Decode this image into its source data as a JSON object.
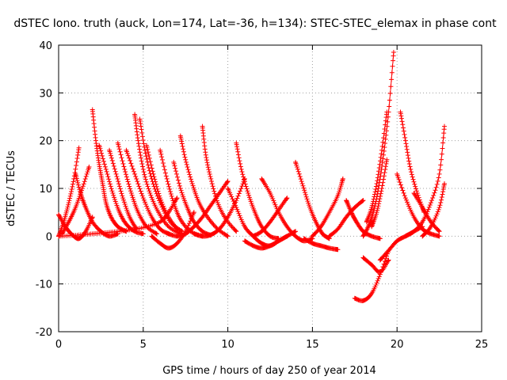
{
  "chart_data": {
    "type": "scatter",
    "title": "dSTEC Iono. truth (auck, Lon=174, Lat=-36, h=134): STEC-STEC_elemax in phase cont",
    "xlabel": "GPS time / hours of day 250 of year 2014",
    "ylabel": "dSTEC  / TECUs",
    "xlim": [
      0,
      25
    ],
    "ylim": [
      -20,
      40
    ],
    "xticks": [
      0,
      5,
      10,
      15,
      20,
      25
    ],
    "yticks": [
      -20,
      -10,
      0,
      10,
      20,
      30,
      40
    ],
    "x_tick_labels": [
      "0",
      "5",
      "10",
      "15",
      "20",
      "25"
    ],
    "y_tick_labels": [
      "-20",
      "-10",
      "0",
      "10",
      "20",
      "30",
      "40"
    ],
    "grid": true,
    "marker": "plus",
    "color": "#ff0000",
    "series": [
      {
        "x": [
          0.0,
          0.3,
          0.6,
          0.9,
          1.2
        ],
        "y": [
          0,
          3,
          7,
          12,
          18.5
        ]
      },
      {
        "x": [
          0.0,
          0.4,
          0.8,
          1.2,
          1.6,
          2.0
        ],
        "y": [
          4.5,
          2,
          0.3,
          -0.5,
          1,
          4
        ]
      },
      {
        "x": [
          0.2,
          0.6,
          1.0,
          1.4,
          1.8
        ],
        "y": [
          0.5,
          3,
          6,
          10,
          14.5
        ]
      },
      {
        "x": [
          1.0,
          1.3,
          1.6,
          2.0,
          2.5,
          3.0,
          3.5
        ],
        "y": [
          13,
          9,
          6,
          3,
          1,
          0,
          0.5
        ]
      },
      {
        "x": [
          2.0,
          2.2,
          2.4,
          2.6,
          2.8,
          3.1,
          3.5,
          4.0
        ],
        "y": [
          26.5,
          20,
          15,
          11,
          7,
          4,
          2,
          1
        ]
      },
      {
        "x": [
          2.4,
          2.8,
          3.2,
          3.6,
          4.0,
          4.5,
          5.0
        ],
        "y": [
          19,
          14,
          9,
          5,
          2.5,
          1,
          0.5
        ]
      },
      {
        "x": [
          3.0,
          3.4,
          3.8,
          4.2,
          4.6
        ],
        "y": [
          18,
          13,
          8,
          4,
          1.5
        ]
      },
      {
        "x": [
          3.5,
          3.9,
          4.3,
          4.7,
          5.2,
          5.8
        ],
        "y": [
          19.5,
          14,
          9,
          5,
          2,
          0.5
        ]
      },
      {
        "x": [
          4.0,
          4.5,
          5.0,
          5.5,
          6.0,
          6.5
        ],
        "y": [
          18,
          13,
          8,
          4,
          1.5,
          0.5
        ]
      },
      {
        "x": [
          4.5,
          4.7,
          5.0,
          5.4,
          5.9,
          6.5,
          7.2
        ],
        "y": [
          25.5,
          20,
          14,
          9,
          5,
          2,
          0.5
        ]
      },
      {
        "x": [
          4.8,
          5.1,
          5.5,
          6.0,
          6.6,
          7.3
        ],
        "y": [
          24.5,
          18,
          12,
          7,
          3,
          1
        ]
      },
      {
        "x": [
          5.2,
          5.6,
          6.0,
          6.5,
          7.0
        ],
        "y": [
          19,
          13,
          8,
          4,
          1.5
        ]
      },
      {
        "x": [
          6.0,
          6.4,
          6.8,
          7.2,
          7.8,
          8.5
        ],
        "y": [
          18,
          12,
          7,
          3.5,
          1,
          0
        ]
      },
      {
        "x": [
          6.8,
          7.2,
          7.6,
          8.0,
          8.5,
          9.0
        ],
        "y": [
          15.5,
          10,
          6,
          3,
          1,
          0.2
        ]
      },
      {
        "x": [
          7.2,
          7.5,
          7.9,
          8.3,
          8.8,
          9.4,
          10.0
        ],
        "y": [
          21,
          16,
          11,
          7,
          4,
          1.5,
          0
        ]
      },
      {
        "x": [
          8.5,
          8.7,
          9.0,
          9.4,
          9.9,
          10.5
        ],
        "y": [
          23,
          17,
          12,
          7,
          3.5,
          1
        ]
      },
      {
        "x": [
          0.0,
          1.0,
          2.0,
          3.0,
          4.0,
          5.0,
          6.0,
          6.5,
          7.0
        ],
        "y": [
          0,
          0.2,
          0.5,
          0.8,
          1.2,
          1.8,
          3,
          5,
          8
        ]
      },
      {
        "x": [
          5.5,
          6.0,
          6.5,
          7.0,
          7.5,
          8.0
        ],
        "y": [
          0,
          -1.5,
          -2.5,
          -1.5,
          1,
          5
        ]
      },
      {
        "x": [
          6.5,
          7.0,
          7.5,
          8.0,
          8.5,
          9.0,
          9.5,
          10.0
        ],
        "y": [
          0.5,
          0,
          0.5,
          2,
          4,
          6.5,
          9,
          11.5
        ]
      },
      {
        "x": [
          8.0,
          8.5,
          9.0,
          9.5,
          10.0,
          10.5,
          11.0
        ],
        "y": [
          0.5,
          0,
          0.3,
          1.5,
          4,
          7.5,
          12
        ]
      },
      {
        "x": [
          10.5,
          10.8,
          11.2,
          11.6,
          12.0,
          12.5,
          13.0
        ],
        "y": [
          19.5,
          14,
          9,
          5,
          2,
          0,
          -0.5
        ]
      },
      {
        "x": [
          10.0,
          10.5,
          11.0,
          11.5,
          12.0,
          12.5,
          13.0,
          13.5
        ],
        "y": [
          10,
          6,
          2,
          0,
          -1.5,
          -2,
          -1,
          0
        ]
      },
      {
        "x": [
          11.0,
          11.5,
          12.0,
          12.5,
          13.0,
          13.5,
          14.0
        ],
        "y": [
          -1,
          -2,
          -2.5,
          -2,
          -1,
          0,
          1
        ]
      },
      {
        "x": [
          12.0,
          12.5,
          13.0,
          13.5,
          14.0,
          14.5,
          15.0
        ],
        "y": [
          12,
          9,
          5,
          2,
          0,
          -1,
          -0.5
        ]
      },
      {
        "x": [
          11.5,
          12.0,
          12.5,
          13.0,
          13.5
        ],
        "y": [
          0,
          1,
          3,
          5.5,
          8
        ]
      },
      {
        "x": [
          14.0,
          14.4,
          14.8,
          15.2,
          15.6,
          16.0
        ],
        "y": [
          15.5,
          11,
          6.5,
          3,
          0.5,
          -0.5
        ]
      },
      {
        "x": [
          14.5,
          15.0,
          15.5,
          16.0,
          16.5
        ],
        "y": [
          -0.5,
          -1.5,
          -2,
          -2.5,
          -2.8
        ]
      },
      {
        "x": [
          15.0,
          15.5,
          16.0,
          16.5,
          16.8
        ],
        "y": [
          0,
          2,
          5,
          8.5,
          12
        ]
      },
      {
        "x": [
          16.0,
          16.5,
          17.0,
          17.5,
          18.0
        ],
        "y": [
          0,
          1.5,
          4,
          6,
          7.5
        ]
      },
      {
        "x": [
          17.0,
          17.3,
          17.6,
          18.0,
          18.5,
          19.0
        ],
        "y": [
          7.5,
          5,
          3,
          1,
          0,
          -0.5
        ]
      },
      {
        "x": [
          18.0,
          18.3,
          18.6,
          18.9,
          19.2,
          19.5,
          19.8
        ],
        "y": [
          0,
          2,
          5,
          10,
          17,
          26,
          38.5
        ]
      },
      {
        "x": [
          18.2,
          18.5,
          18.8,
          19.1,
          19.4
        ],
        "y": [
          3,
          6,
          11,
          18,
          26
        ]
      },
      {
        "x": [
          18.5,
          18.8,
          19.1,
          19.4
        ],
        "y": [
          2,
          5,
          10,
          16
        ]
      },
      {
        "x": [
          17.5,
          18.0,
          18.5,
          19.0,
          19.5
        ],
        "y": [
          -13,
          -13.5,
          -12,
          -8,
          -3
        ]
      },
      {
        "x": [
          18.0,
          18.5,
          19.0,
          19.5
        ],
        "y": [
          -4.5,
          -6,
          -7.5,
          -5
        ]
      },
      {
        "x": [
          19.0,
          19.5,
          20.0,
          20.5,
          21.0,
          21.5
        ],
        "y": [
          -5,
          -3,
          -1,
          0,
          1,
          2
        ]
      },
      {
        "x": [
          20.2,
          20.5,
          20.8,
          21.2,
          21.6
        ],
        "y": [
          26,
          20,
          14,
          9,
          5
        ]
      },
      {
        "x": [
          20.0,
          20.5,
          21.0,
          21.5,
          22.0,
          22.5
        ],
        "y": [
          13,
          8,
          4,
          1.5,
          0.5,
          0
        ]
      },
      {
        "x": [
          21.0,
          21.5,
          22.0,
          22.5
        ],
        "y": [
          9,
          6,
          3,
          1
        ]
      },
      {
        "x": [
          20.5,
          21.0,
          21.5,
          22.0,
          22.5,
          22.8
        ],
        "y": [
          0,
          1,
          3,
          7,
          13,
          23
        ]
      },
      {
        "x": [
          21.5,
          22.0,
          22.5,
          22.8
        ],
        "y": [
          0,
          2,
          6,
          11
        ]
      }
    ]
  }
}
